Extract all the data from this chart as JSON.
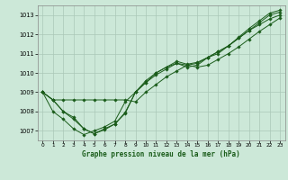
{
  "title": "Graphe pression niveau de la mer (hPa)",
  "bg_color": "#cce8d8",
  "grid_color": "#aac8b8",
  "line_color": "#1a5c1a",
  "xlim": [
    -0.5,
    23.5
  ],
  "ylim": [
    1006.5,
    1013.5
  ],
  "xticks": [
    0,
    1,
    2,
    3,
    4,
    5,
    6,
    7,
    8,
    9,
    10,
    11,
    12,
    13,
    14,
    15,
    16,
    17,
    18,
    19,
    20,
    21,
    22,
    23
  ],
  "yticks": [
    1007,
    1008,
    1009,
    1010,
    1011,
    1012,
    1013
  ],
  "series": [
    {
      "x": [
        0,
        1,
        2,
        3,
        4,
        5,
        6,
        7,
        8,
        9,
        10,
        11,
        12,
        13,
        14,
        15,
        16,
        17,
        18,
        19,
        20,
        21,
        22,
        23
      ],
      "y": [
        1009.0,
        1008.6,
        1008.6,
        1008.6,
        1008.6,
        1008.6,
        1008.6,
        1008.6,
        1008.6,
        1008.5,
        1009.0,
        1009.4,
        1009.8,
        1010.1,
        1010.4,
        1010.3,
        1010.4,
        1010.7,
        1011.0,
        1011.35,
        1011.75,
        1012.15,
        1012.5,
        1012.85
      ]
    },
    {
      "x": [
        0,
        1,
        2,
        3,
        4,
        5,
        6,
        7,
        8,
        9,
        10,
        11,
        12,
        13,
        14,
        15,
        16,
        17,
        18,
        19,
        20,
        21,
        22,
        23
      ],
      "y": [
        1009.0,
        1008.0,
        1007.6,
        1007.1,
        1006.8,
        1007.0,
        1007.2,
        1007.5,
        1008.5,
        1009.0,
        1009.5,
        1009.9,
        1010.2,
        1010.5,
        1010.3,
        1010.4,
        1010.8,
        1011.0,
        1011.4,
        1011.8,
        1012.2,
        1012.5,
        1012.8,
        1013.0
      ]
    },
    {
      "x": [
        0,
        1,
        2,
        3,
        4,
        5,
        6,
        7,
        8,
        9,
        10,
        11,
        12,
        13,
        14,
        15,
        16,
        17,
        18,
        19,
        20,
        21,
        22,
        23
      ],
      "y": [
        1009.0,
        1008.6,
        1008.0,
        1007.6,
        1007.1,
        1006.85,
        1007.05,
        1007.35,
        1007.9,
        1009.0,
        1009.5,
        1010.0,
        1010.3,
        1010.5,
        1010.4,
        1010.5,
        1010.8,
        1011.1,
        1011.4,
        1011.8,
        1012.2,
        1012.6,
        1013.0,
        1013.15
      ]
    },
    {
      "x": [
        0,
        1,
        2,
        3,
        4,
        5,
        6,
        7,
        8,
        9,
        10,
        11,
        12,
        13,
        14,
        15,
        16,
        17,
        18,
        19,
        20,
        21,
        22,
        23
      ],
      "y": [
        1009.0,
        1008.6,
        1008.0,
        1007.7,
        1007.1,
        1006.85,
        1007.1,
        1007.35,
        1007.95,
        1009.0,
        1009.6,
        1010.0,
        1010.3,
        1010.6,
        1010.45,
        1010.55,
        1010.8,
        1011.1,
        1011.4,
        1011.85,
        1012.3,
        1012.7,
        1013.1,
        1013.25
      ]
    }
  ]
}
